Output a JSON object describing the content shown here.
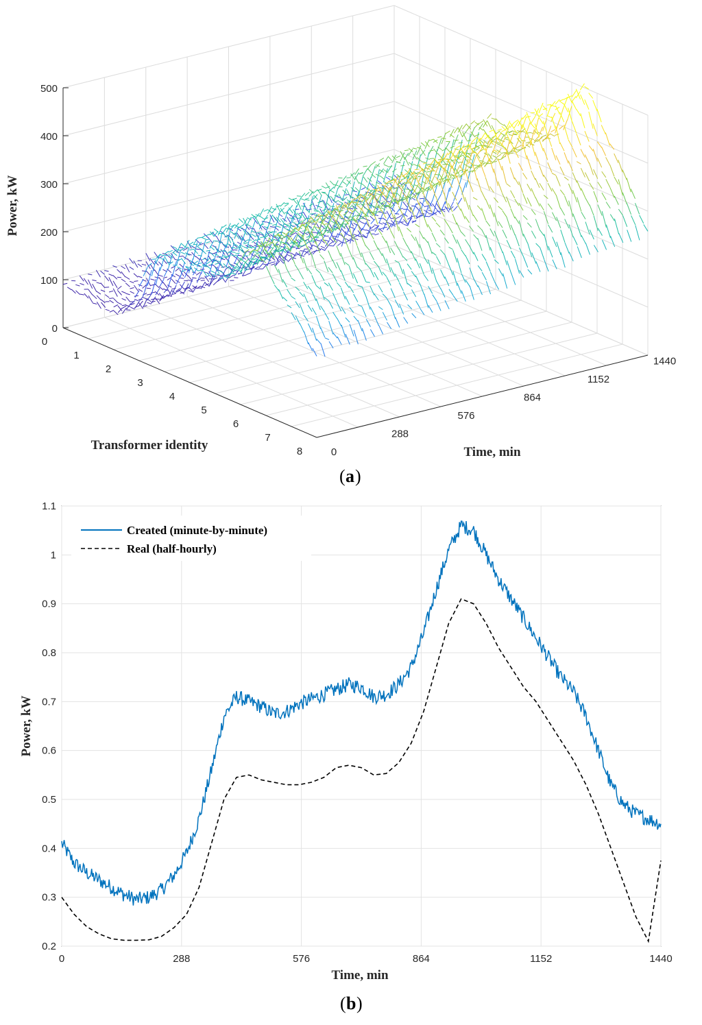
{
  "chart_data": [
    {
      "type": "surface-3d",
      "panel_label": "a",
      "zlabel": "Power, kW",
      "xlabel": "Time, min",
      "ylabel": "Transformer identity",
      "zlim": [
        0,
        500
      ],
      "z_ticks": [
        "0",
        "100",
        "200",
        "300",
        "400",
        "500"
      ],
      "xlim": [
        0,
        1440
      ],
      "x_ticks": [
        "0",
        "288",
        "576",
        "864",
        "1152",
        "1440"
      ],
      "ylim": [
        0,
        8
      ],
      "y_ticks": [
        "0",
        "1",
        "2",
        "3",
        "4",
        "5",
        "6",
        "7",
        "8"
      ],
      "grid": true,
      "colormap": [
        "#3e26a8",
        "#2e61f9",
        "#16a7d8",
        "#1cbfa3",
        "#88cc3e",
        "#f3be34",
        "#f9fb15"
      ],
      "profile_time_min": [
        0,
        120,
        240,
        300,
        360,
        420,
        480,
        540,
        600,
        660,
        720,
        780,
        840,
        900,
        960,
        1020,
        1080,
        1140,
        1200,
        1260,
        1320,
        1380,
        1440
      ],
      "profile_power_kw": [
        120,
        105,
        100,
        102,
        115,
        170,
        260,
        300,
        290,
        285,
        295,
        305,
        300,
        310,
        330,
        390,
        420,
        400,
        350,
        320,
        290,
        250,
        210
      ],
      "transformer_scale": [
        0.85,
        0.9,
        0.95,
        1.0,
        1.05,
        1.1,
        1.15,
        1.2
      ]
    },
    {
      "type": "line",
      "panel_label": "b",
      "xlabel": "Time, min",
      "ylabel": "Power, kW",
      "xlim": [
        0,
        1440
      ],
      "ylim": [
        0.2,
        1.1
      ],
      "x_ticks": [
        "0",
        "288",
        "576",
        "864",
        "1152",
        "1440"
      ],
      "y_ticks": [
        "0.2",
        "0.3",
        "0.4",
        "0.5",
        "0.6",
        "0.7",
        "0.8",
        "0.9",
        "1",
        "1.1"
      ],
      "grid": true,
      "legend_position": "top-left",
      "series": [
        {
          "name": "Created (minute-by-minute)",
          "color": "#0072bd",
          "style": "solid",
          "x": [
            0,
            30,
            60,
            90,
            120,
            150,
            180,
            210,
            240,
            270,
            300,
            330,
            360,
            390,
            420,
            450,
            480,
            510,
            540,
            570,
            600,
            630,
            660,
            690,
            720,
            750,
            780,
            810,
            840,
            870,
            900,
            930,
            960,
            990,
            1020,
            1050,
            1080,
            1110,
            1140,
            1170,
            1200,
            1230,
            1260,
            1290,
            1320,
            1350,
            1380,
            1410,
            1440
          ],
          "y": [
            0.41,
            0.37,
            0.35,
            0.335,
            0.32,
            0.305,
            0.295,
            0.3,
            0.315,
            0.345,
            0.39,
            0.46,
            0.56,
            0.67,
            0.71,
            0.7,
            0.69,
            0.675,
            0.68,
            0.695,
            0.705,
            0.715,
            0.725,
            0.735,
            0.73,
            0.71,
            0.715,
            0.735,
            0.77,
            0.84,
            0.93,
            1.01,
            1.06,
            1.05,
            1.0,
            0.95,
            0.91,
            0.87,
            0.83,
            0.79,
            0.75,
            0.72,
            0.67,
            0.6,
            0.53,
            0.49,
            0.47,
            0.46,
            0.45
          ]
        },
        {
          "name": "Real (half-hourly)",
          "color": "#000000",
          "style": "dashed",
          "x": [
            0,
            30,
            60,
            90,
            120,
            150,
            180,
            210,
            240,
            270,
            300,
            330,
            360,
            390,
            420,
            450,
            480,
            510,
            540,
            570,
            600,
            630,
            660,
            690,
            720,
            750,
            780,
            810,
            840,
            870,
            900,
            930,
            960,
            990,
            1020,
            1050,
            1080,
            1110,
            1140,
            1170,
            1200,
            1230,
            1260,
            1290,
            1320,
            1350,
            1380,
            1410,
            1440
          ],
          "y": [
            0.3,
            0.265,
            0.24,
            0.225,
            0.215,
            0.212,
            0.212,
            0.213,
            0.22,
            0.238,
            0.265,
            0.32,
            0.41,
            0.5,
            0.545,
            0.55,
            0.54,
            0.535,
            0.53,
            0.53,
            0.535,
            0.545,
            0.565,
            0.57,
            0.565,
            0.55,
            0.553,
            0.575,
            0.615,
            0.68,
            0.77,
            0.86,
            0.91,
            0.9,
            0.86,
            0.81,
            0.77,
            0.73,
            0.7,
            0.66,
            0.62,
            0.58,
            0.53,
            0.47,
            0.4,
            0.33,
            0.26,
            0.21,
            0.375
          ]
        }
      ]
    }
  ]
}
